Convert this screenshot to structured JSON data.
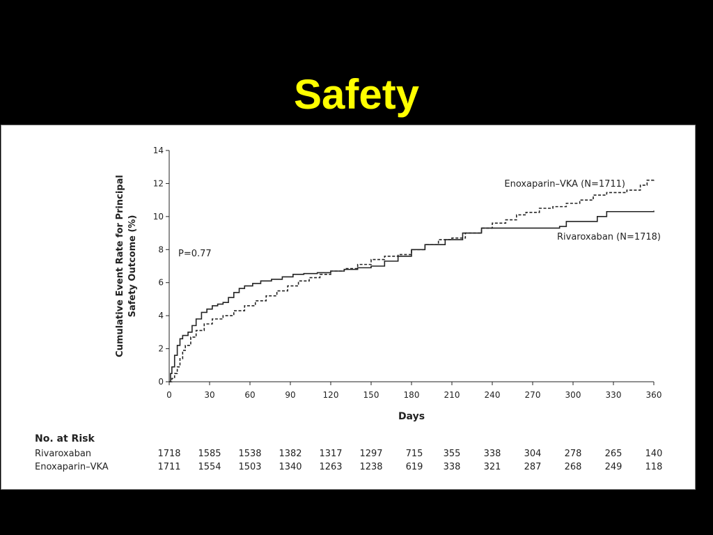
{
  "slide": {
    "title": "Safety"
  },
  "chart_data": {
    "type": "line",
    "title": "",
    "xlabel": "Days",
    "ylabel_lines": [
      "Cumulative Event Rate for Principal",
      "Safety Outcome (%)"
    ],
    "xlim": [
      0,
      360
    ],
    "ylim": [
      0,
      14
    ],
    "x_ticks": [
      0,
      30,
      60,
      90,
      120,
      150,
      180,
      210,
      240,
      270,
      300,
      330,
      360
    ],
    "y_ticks": [
      0,
      2,
      4,
      6,
      8,
      10,
      12,
      14
    ],
    "annotation": "P=0.77",
    "series": [
      {
        "name": "Rivaroxaban (N=1718)",
        "style": "solid",
        "color": "#222222",
        "points": [
          [
            0,
            0
          ],
          [
            1,
            0.5
          ],
          [
            2,
            0.9
          ],
          [
            4,
            1.6
          ],
          [
            6,
            2.2
          ],
          [
            8,
            2.6
          ],
          [
            10,
            2.8
          ],
          [
            14,
            3.0
          ],
          [
            17,
            3.4
          ],
          [
            20,
            3.8
          ],
          [
            24,
            4.2
          ],
          [
            28,
            4.4
          ],
          [
            32,
            4.6
          ],
          [
            36,
            4.7
          ],
          [
            40,
            4.8
          ],
          [
            44,
            5.1
          ],
          [
            48,
            5.4
          ],
          [
            52,
            5.65
          ],
          [
            56,
            5.8
          ],
          [
            62,
            5.95
          ],
          [
            68,
            6.1
          ],
          [
            76,
            6.2
          ],
          [
            84,
            6.35
          ],
          [
            92,
            6.5
          ],
          [
            100,
            6.55
          ],
          [
            110,
            6.6
          ],
          [
            120,
            6.7
          ],
          [
            130,
            6.8
          ],
          [
            140,
            6.9
          ],
          [
            150,
            7.0
          ],
          [
            160,
            7.3
          ],
          [
            170,
            7.6
          ],
          [
            180,
            8.0
          ],
          [
            190,
            8.3
          ],
          [
            205,
            8.6
          ],
          [
            218,
            9.0
          ],
          [
            232,
            9.3
          ],
          [
            255,
            9.3
          ],
          [
            290,
            9.4
          ],
          [
            295,
            9.7
          ],
          [
            312,
            9.7
          ],
          [
            318,
            10.0
          ],
          [
            325,
            10.3
          ],
          [
            360,
            10.35
          ]
        ]
      },
      {
        "name": "Enoxaparin–VKA (N=1711)",
        "style": "dashed",
        "color": "#222222",
        "points": [
          [
            0,
            0
          ],
          [
            2,
            0.2
          ],
          [
            4,
            0.5
          ],
          [
            6,
            0.9
          ],
          [
            8,
            1.4
          ],
          [
            10,
            1.9
          ],
          [
            12,
            2.2
          ],
          [
            16,
            2.7
          ],
          [
            20,
            3.1
          ],
          [
            26,
            3.5
          ],
          [
            32,
            3.8
          ],
          [
            40,
            4.0
          ],
          [
            48,
            4.3
          ],
          [
            56,
            4.6
          ],
          [
            64,
            4.9
          ],
          [
            72,
            5.2
          ],
          [
            80,
            5.5
          ],
          [
            88,
            5.8
          ],
          [
            96,
            6.1
          ],
          [
            104,
            6.3
          ],
          [
            112,
            6.5
          ],
          [
            120,
            6.7
          ],
          [
            130,
            6.85
          ],
          [
            140,
            7.1
          ],
          [
            150,
            7.4
          ],
          [
            160,
            7.6
          ],
          [
            170,
            7.7
          ],
          [
            180,
            8.0
          ],
          [
            190,
            8.3
          ],
          [
            200,
            8.6
          ],
          [
            210,
            8.7
          ],
          [
            220,
            9.0
          ],
          [
            232,
            9.3
          ],
          [
            240,
            9.6
          ],
          [
            250,
            9.8
          ],
          [
            258,
            10.1
          ],
          [
            265,
            10.25
          ],
          [
            275,
            10.5
          ],
          [
            285,
            10.6
          ],
          [
            295,
            10.8
          ],
          [
            305,
            11.0
          ],
          [
            315,
            11.3
          ],
          [
            325,
            11.45
          ],
          [
            340,
            11.6
          ],
          [
            350,
            11.9
          ],
          [
            355,
            12.2
          ],
          [
            360,
            12.3
          ]
        ]
      }
    ],
    "risk_table": {
      "header": "No. at Risk",
      "rows": [
        {
          "label": "Rivaroxaban",
          "values": [
            "1718",
            "1585",
            "1538",
            "1382",
            "1317",
            "1297",
            "715",
            "355",
            "338",
            "304",
            "278",
            "265",
            "140"
          ]
        },
        {
          "label": "Enoxaparin–VKA",
          "values": [
            "1711",
            "1554",
            "1503",
            "1340",
            "1263",
            "1238",
            "619",
            "338",
            "321",
            "287",
            "268",
            "249",
            "118"
          ]
        }
      ]
    }
  }
}
